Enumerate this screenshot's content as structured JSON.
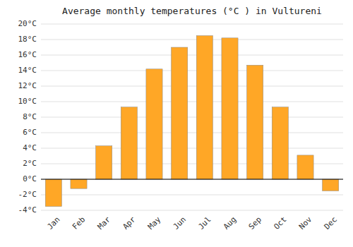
{
  "chart_data": {
    "type": "bar",
    "title": "Average monthly temperatures (°C ) in Vultureni",
    "categories": [
      "Jan",
      "Feb",
      "Mar",
      "Apr",
      "May",
      "Jun",
      "Jul",
      "Aug",
      "Sep",
      "Oct",
      "Nov",
      "Dec"
    ],
    "values": [
      -3.5,
      -1.2,
      4.3,
      9.3,
      14.2,
      17.0,
      18.5,
      18.2,
      14.7,
      9.3,
      3.1,
      -1.5
    ],
    "color": "#FFA726",
    "ylim": [
      -4,
      20
    ],
    "yticks": [
      {
        "value": -4,
        "label": "-4°C"
      },
      {
        "value": -2,
        "label": "-2°C"
      },
      {
        "value": 0,
        "label": "0°C"
      },
      {
        "value": 2,
        "label": "2°C"
      },
      {
        "value": 4,
        "label": "4°C"
      },
      {
        "value": 6,
        "label": "6°C"
      },
      {
        "value": 8,
        "label": "8°C"
      },
      {
        "value": 10,
        "label": "10°C"
      },
      {
        "value": 12,
        "label": "12°C"
      },
      {
        "value": 14,
        "label": "14°C"
      },
      {
        "value": 16,
        "label": "16°C"
      },
      {
        "value": 18,
        "label": "18°C"
      },
      {
        "value": 20,
        "label": "20°C"
      }
    ],
    "grid": true
  }
}
